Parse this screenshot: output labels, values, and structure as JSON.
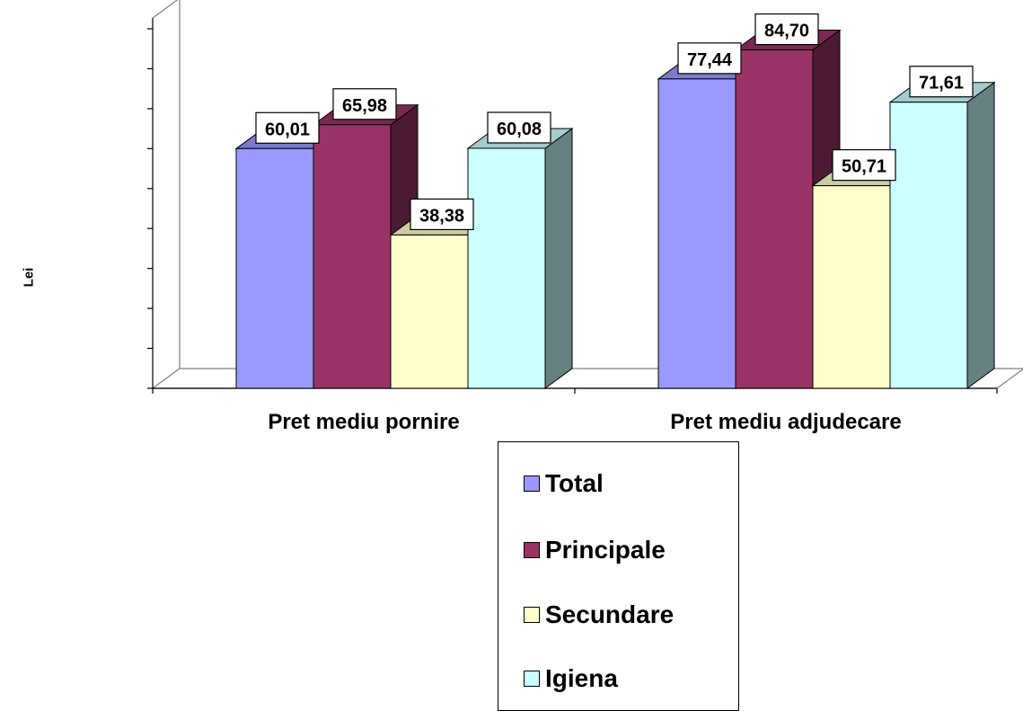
{
  "chart_data": {
    "type": "bar",
    "title": "",
    "xlabel": "",
    "ylabel": "Lei",
    "ylim": [
      0,
      90
    ],
    "categories": [
      "Pret mediu pornire",
      "Pret mediu adjudecare"
    ],
    "series": [
      {
        "name": "Total",
        "values": [
          60.01,
          77.44
        ],
        "labels": [
          "60,01",
          "77,44"
        ],
        "color": "#9999ff"
      },
      {
        "name": "Principale",
        "values": [
          65.98,
          84.7
        ],
        "labels": [
          "65,98",
          "84,70"
        ],
        "color": "#993366"
      },
      {
        "name": "Secundare",
        "values": [
          38.38,
          50.71
        ],
        "labels": [
          "38,38",
          "50,71"
        ],
        "color": "#ffffcc"
      },
      {
        "name": "Igiena",
        "values": [
          60.08,
          71.61
        ],
        "labels": [
          "60,08",
          "71,61"
        ],
        "color": "#ccffff"
      }
    ],
    "grid": false,
    "legend_position": "bottom",
    "style": "3d-clustered-column"
  }
}
